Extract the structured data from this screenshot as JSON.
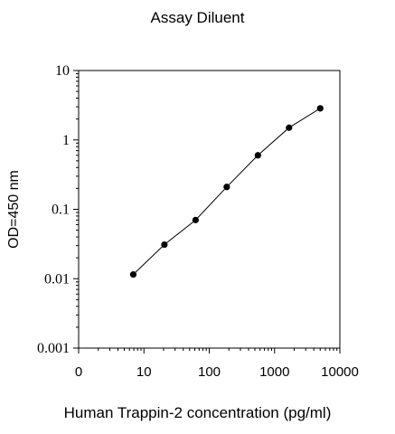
{
  "chart_data": {
    "type": "line",
    "title": "Assay Diluent",
    "xlabel": "Human Trappin-2 concentration (pg/ml)",
    "ylabel": "OD=450 nm",
    "x_scale": "log",
    "y_scale": "log",
    "xlim": [
      1,
      10000
    ],
    "ylim": [
      0.001,
      10
    ],
    "x_tick_values": [
      1,
      10,
      100,
      1000,
      10000
    ],
    "x_tick_labels": [
      "0",
      "10",
      "100",
      "1000",
      "10000"
    ],
    "y_tick_values": [
      10,
      1,
      0.1,
      0.01,
      0.001
    ],
    "y_tick_labels": [
      "10",
      "1",
      "0.1",
      "0.01",
      "0.001"
    ],
    "grid": false,
    "legend": "none",
    "colors": {
      "line": "#000000",
      "marker": "#000000",
      "axis": "#000000"
    },
    "series": [
      {
        "x": [
          6.86,
          20.58,
          61.73,
          185.2,
          555.6,
          1666.7,
          5000
        ],
        "y": [
          0.0115,
          0.031,
          0.07,
          0.21,
          0.6,
          1.5,
          2.85
        ]
      }
    ]
  }
}
